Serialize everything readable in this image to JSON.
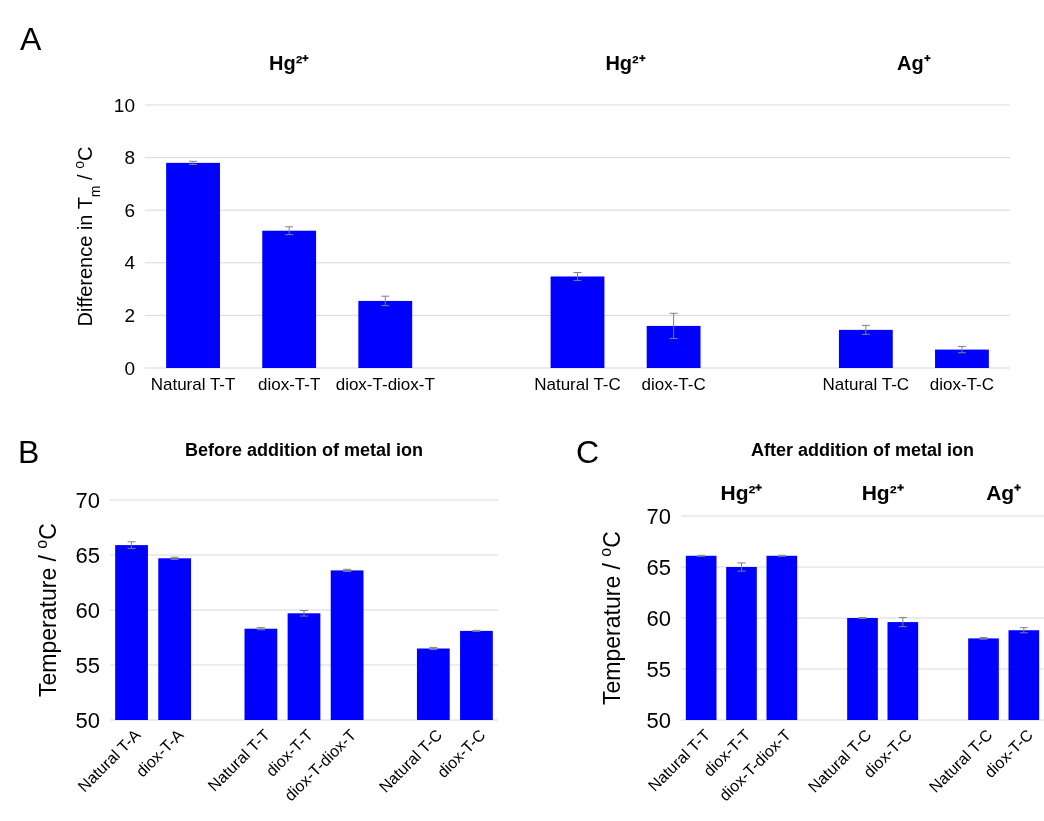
{
  "chart_data": [
    {
      "type": "bar",
      "categories": [
        "Natural T-T",
        "diox-T-T",
        "diox-T-diox-T",
        null,
        "Natural T-C",
        "diox-T-C",
        null,
        "Natural T-C",
        "diox-T-C"
      ],
      "values": [
        7.8,
        5.22,
        2.55,
        null,
        3.48,
        1.6,
        null,
        1.45,
        0.7
      ],
      "errors": [
        0.06,
        0.15,
        0.18,
        null,
        0.15,
        0.48,
        null,
        0.17,
        0.12
      ],
      "color": "#0000ff",
      "ylim": [
        0,
        10
      ],
      "yticks": [
        0,
        2,
        4,
        6,
        8,
        10
      ],
      "grid": "y",
      "ylabel": "Difference in T$_{m}$ / $^{o}$C",
      "annotations": [
        "A",
        "Hg²⁺",
        "Hg²⁺",
        "Ag⁺"
      ]
    },
    {
      "type": "bar",
      "title": "Before addition of metal ion",
      "categories": [
        "Natural T-A",
        "diox-T-A",
        null,
        "Natural T-T",
        "diox-T-T",
        "diox-T-diox-T",
        null,
        "Natural T-C",
        "diox-T-C"
      ],
      "values": [
        65.9,
        64.7,
        null,
        58.3,
        59.7,
        63.6,
        null,
        56.5,
        58.1
      ],
      "errors": [
        0.3,
        0.1,
        null,
        0.1,
        0.25,
        0.1,
        null,
        0.1,
        0.05
      ],
      "color": "#0000ff",
      "ylim": [
        50,
        70
      ],
      "yticks": [
        50,
        55,
        60,
        65,
        70
      ],
      "grid": "y",
      "ylabel": "Temperature  / $^{o}$C",
      "annotations": [
        "B"
      ]
    },
    {
      "type": "bar",
      "title": "After addition of metal ion",
      "categories": [
        "Natural T-T",
        "diox-T-T",
        "diox-T-diox-T",
        null,
        "Natural T-C",
        "diox-T-C",
        null,
        "Natural T-C",
        "diox-T-C"
      ],
      "values": [
        66.1,
        65.0,
        66.1,
        null,
        60.0,
        59.6,
        null,
        58.0,
        58.8
      ],
      "errors": [
        0.05,
        0.4,
        0.05,
        null,
        0.05,
        0.45,
        null,
        0.08,
        0.25
      ],
      "color": "#0000ff",
      "ylim": [
        50,
        70
      ],
      "yticks": [
        50,
        55,
        60,
        65,
        70
      ],
      "grid": "y",
      "ylabel": "Temperature  / $^{o}$C",
      "annotations": [
        "C",
        "Hg²⁺",
        "Hg²⁺",
        "Ag⁺"
      ]
    }
  ]
}
